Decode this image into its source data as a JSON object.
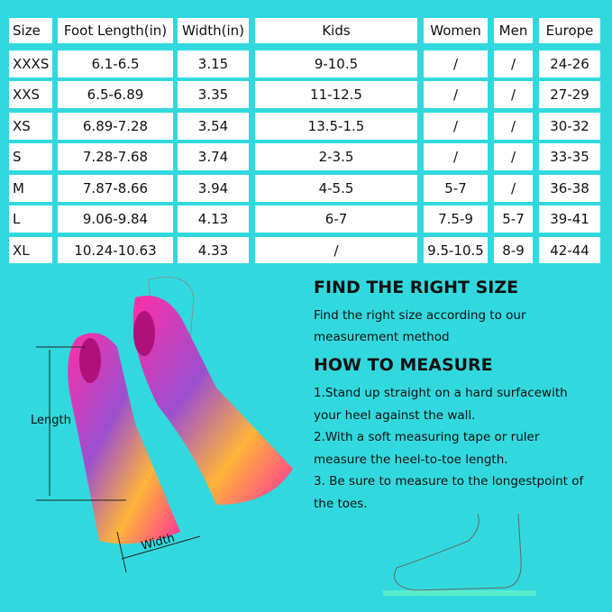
{
  "table": {
    "header": [
      "Size",
      "Foot Length(in)",
      "Width(in)",
      "Kids",
      "Women",
      "Men",
      "Europe"
    ],
    "rows": [
      [
        "XXXS",
        "6.1-6.5",
        "3.15",
        "9-10.5",
        "/",
        "/",
        "24-26"
      ],
      [
        "XXS",
        "6.5-6.89",
        "3.35",
        "11-12.5",
        "/",
        "/",
        "27-29"
      ],
      [
        "XS",
        "6.89-7.28",
        "3.54",
        "13.5-1.5",
        "/",
        "/",
        "30-32"
      ],
      [
        "S",
        "7.28-7.68",
        "3.74",
        "2-3.5",
        "/",
        "/",
        "33-35"
      ],
      [
        "M",
        "7.87-8.66",
        "3.94",
        "4-5.5",
        "5-7",
        "/",
        "36-38"
      ],
      [
        "L",
        "9.06-9.84",
        "4.13",
        "6-7",
        "7.5-9",
        "5-7",
        "39-41"
      ],
      [
        "XL",
        "10.24-10.63",
        "4.33",
        "/",
        "9.5-10.5",
        "8-9",
        "42-44"
      ]
    ]
  },
  "figure": {
    "length_label": "Length",
    "width_label": "Width"
  },
  "find_size": {
    "title": "FIND THE RIGHT SIZE",
    "lines": [
      "Find the right size according to our",
      "measurement method"
    ]
  },
  "how_to": {
    "title": "HOW TO MEASURE",
    "lines": [
      "1.Stand up straight on a hard surfacewith",
      "your heel against the wall.",
      "2.With a soft measuring tape or ruler",
      "measure the heel-to-toe length.",
      "3. Be sure to measure to the longestpoint of",
      "the toes."
    ]
  }
}
